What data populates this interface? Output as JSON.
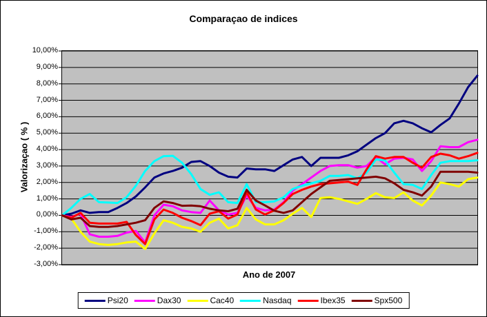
{
  "chart": {
    "title": "Comparaçao de indices",
    "y_axis_title": "Valorizaçao ( % )",
    "x_axis_title": "Ano de 2007"
  },
  "colors": {
    "chart_background": "#FFFFFF",
    "plot_background": "#C0C0C0",
    "gridline": "#000000",
    "frame_border": "#000000"
  },
  "y_axis": {
    "tick_labels": [
      "10,00%",
      "9,00%",
      "8,00%",
      "7,00%",
      "6,00%",
      "5,00%",
      "4,00%",
      "3,00%",
      "2,00%",
      "1,00%",
      "0,00%",
      "-1,00%",
      "-2,00%",
      "-3,00%"
    ]
  },
  "chart_data": {
    "type": "line",
    "title": "Comparaçao de indices",
    "xlabel": "Ano de 2007",
    "ylabel": "Valorizaçao ( % )",
    "ylim": [
      -3,
      10
    ],
    "y_tick_interval": 1,
    "x_tick_labels_shown": "none",
    "n_points": 46,
    "grid": "horizontal black gridlines every 1% on gray plot area",
    "legend_position": "bottom",
    "values_unit": "percent",
    "series": [
      {
        "name": "Psi20",
        "color": "#000080",
        "values": [
          0.0,
          0.1,
          0.3,
          0.15,
          0.2,
          0.2,
          0.45,
          0.75,
          1.15,
          1.7,
          2.3,
          2.55,
          2.7,
          2.9,
          3.25,
          3.3,
          3.0,
          2.6,
          2.35,
          2.3,
          2.85,
          2.8,
          2.8,
          2.7,
          3.05,
          3.4,
          3.55,
          3.0,
          3.5,
          3.5,
          3.5,
          3.65,
          3.9,
          4.3,
          4.7,
          5.0,
          5.6,
          5.75,
          5.6,
          5.3,
          5.05,
          5.5,
          5.9,
          6.8,
          7.8,
          8.5
        ]
      },
      {
        "name": "Dax30",
        "color": "#FF00FF",
        "values": [
          0.0,
          -0.1,
          0.1,
          -1.15,
          -1.3,
          -1.3,
          -1.25,
          -1.05,
          -0.95,
          -1.65,
          0.0,
          0.65,
          0.55,
          0.3,
          0.2,
          0.15,
          0.9,
          0.3,
          0.05,
          0.15,
          1.2,
          0.45,
          0.3,
          0.35,
          0.8,
          1.5,
          1.9,
          2.3,
          2.7,
          3.0,
          3.05,
          3.05,
          2.9,
          3.0,
          3.55,
          3.1,
          3.45,
          3.5,
          3.4,
          2.7,
          3.3,
          4.2,
          4.15,
          4.15,
          4.45,
          4.6
        ]
      },
      {
        "name": "Cac40",
        "color": "#FFFF00",
        "values": [
          0.0,
          -0.2,
          -1.0,
          -1.6,
          -1.75,
          -1.8,
          -1.75,
          -1.65,
          -1.6,
          -2.05,
          -1.1,
          -0.3,
          -0.45,
          -0.7,
          -0.8,
          -1.0,
          -0.45,
          -0.2,
          -0.8,
          -0.6,
          0.45,
          -0.25,
          -0.55,
          -0.55,
          -0.3,
          0.1,
          0.45,
          -0.1,
          1.05,
          1.1,
          1.0,
          0.85,
          0.7,
          1.0,
          1.35,
          1.1,
          1.05,
          1.4,
          0.9,
          0.6,
          1.2,
          2.0,
          1.9,
          1.75,
          2.2,
          2.3
        ]
      },
      {
        "name": "Nasdaq",
        "color": "#00FFFF",
        "values": [
          0.0,
          0.45,
          1.0,
          1.3,
          0.8,
          0.78,
          0.75,
          1.1,
          1.8,
          2.7,
          3.3,
          3.6,
          3.62,
          3.2,
          2.5,
          1.6,
          1.25,
          1.4,
          0.8,
          0.75,
          1.9,
          0.8,
          0.8,
          0.85,
          1.1,
          1.6,
          1.8,
          1.95,
          2.1,
          2.4,
          2.4,
          2.45,
          2.25,
          2.6,
          3.4,
          3.35,
          2.6,
          1.9,
          1.85,
          1.6,
          2.45,
          3.2,
          3.3,
          3.3,
          3.3,
          3.35
        ]
      },
      {
        "name": "Ibex35",
        "color": "#FF0000",
        "values": [
          0.0,
          -0.15,
          0.15,
          -0.45,
          -0.5,
          -0.5,
          -0.5,
          -0.4,
          -1.2,
          -1.75,
          -0.25,
          0.35,
          0.15,
          -0.15,
          -0.35,
          -0.6,
          0.1,
          0.25,
          -0.2,
          0.05,
          1.4,
          0.35,
          0.05,
          0.3,
          0.75,
          1.3,
          1.55,
          1.75,
          1.9,
          1.95,
          2.0,
          2.05,
          1.85,
          2.8,
          3.6,
          3.45,
          3.55,
          3.55,
          3.2,
          2.9,
          3.55,
          3.75,
          3.65,
          3.45,
          3.6,
          3.8
        ]
      },
      {
        "name": "Spx500",
        "color": "#800000",
        "values": [
          0.0,
          -0.25,
          -0.15,
          -0.65,
          -0.7,
          -0.7,
          -0.65,
          -0.55,
          -0.45,
          -0.3,
          0.45,
          0.85,
          0.75,
          0.58,
          0.6,
          0.55,
          0.4,
          0.3,
          0.25,
          0.4,
          1.55,
          0.9,
          0.6,
          0.28,
          0.15,
          0.3,
          0.8,
          1.3,
          1.7,
          2.1,
          2.15,
          2.2,
          2.25,
          2.3,
          2.35,
          2.25,
          1.95,
          1.55,
          1.4,
          1.2,
          1.75,
          2.65,
          2.65,
          2.65,
          2.65,
          2.6
        ]
      }
    ]
  }
}
